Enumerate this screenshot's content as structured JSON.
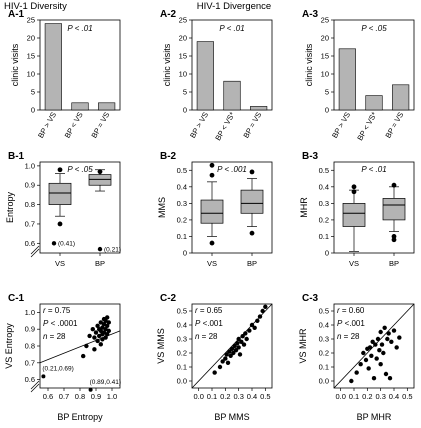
{
  "headers": {
    "left": "HIV-1 Diversity",
    "right": "HIV-1 Divergence"
  },
  "chart_data": [
    {
      "id": "A-1",
      "type": "bar",
      "label": "A-1",
      "ptext": "P < .01",
      "ylabel": "clinic visits",
      "ylim": [
        0,
        25
      ],
      "yticks": [
        0,
        5,
        10,
        15,
        20,
        25
      ],
      "categories": [
        "BP > VS",
        "BP < VS",
        "BP = VS"
      ],
      "values": [
        24,
        2,
        2
      ]
    },
    {
      "id": "A-2",
      "type": "bar",
      "label": "A-2",
      "ptext": "P < .01",
      "ylabel": "clinic visits",
      "ylim": [
        0,
        25
      ],
      "yticks": [
        0,
        5,
        10,
        15,
        20,
        25
      ],
      "categories": [
        "BP > VS",
        "BP < VS*",
        "BP = VS"
      ],
      "values": [
        19,
        8,
        1
      ]
    },
    {
      "id": "A-3",
      "type": "bar",
      "label": "A-3",
      "ptext": "P < .05",
      "ylabel": "clinic visits",
      "ylim": [
        0,
        25
      ],
      "yticks": [
        0,
        5,
        10,
        15,
        20,
        25
      ],
      "categories": [
        "BP > VS",
        "BP < VS*",
        "BP = VS"
      ],
      "values": [
        17,
        4,
        7
      ]
    },
    {
      "id": "B-1",
      "type": "box",
      "label": "B-1",
      "ptext": "P < .05",
      "ylabel": "Entropy",
      "ylim": [
        0.55,
        1.02
      ],
      "yticks": [
        0.6,
        0.7,
        0.8,
        0.9,
        1.0
      ],
      "ytick_labels": [
        "0.6",
        "0.7",
        "0.8",
        "0.9",
        "1.0"
      ],
      "axis_break": true,
      "categories": [
        "VS",
        "BP"
      ],
      "boxes": [
        {
          "whislo": 0.74,
          "q1": 0.8,
          "med": 0.86,
          "q3": 0.91,
          "whishi": 0.96,
          "fliers": [
            0.98,
            0.7
          ]
        },
        {
          "whislo": 0.87,
          "q1": 0.9,
          "med": 0.93,
          "q3": 0.955,
          "whishi": 0.98,
          "fliers": [
            0.97
          ]
        }
      ],
      "annotations": [
        {
          "text": "(0.41)",
          "x": 0.95,
          "y": 0.6,
          "marker": true
        },
        {
          "text": "(0.21)",
          "x": 2.1,
          "y": 0.57,
          "marker": true
        }
      ]
    },
    {
      "id": "B-2",
      "type": "box",
      "label": "B-2",
      "ptext": "P < .001",
      "ylabel": "MMS",
      "ylim": [
        0,
        0.55
      ],
      "yticks": [
        0,
        0.1,
        0.2,
        0.3,
        0.4,
        0.5
      ],
      "ytick_labels": [
        "0",
        "0.1",
        "0.2",
        "0.3",
        "0.4",
        "0.5"
      ],
      "categories": [
        "VS",
        "BP"
      ],
      "boxes": [
        {
          "whislo": 0.1,
          "q1": 0.18,
          "med": 0.24,
          "q3": 0.32,
          "whishi": 0.43,
          "fliers": [
            0.53,
            0.47,
            0.06
          ]
        },
        {
          "whislo": 0.16,
          "q1": 0.24,
          "med": 0.3,
          "q3": 0.38,
          "whishi": 0.45,
          "fliers": [
            0.49,
            0.12
          ]
        }
      ]
    },
    {
      "id": "B-3",
      "type": "box",
      "label": "B-3",
      "ptext": "P < .01",
      "ylabel": "MHR",
      "ylim": [
        0,
        0.55
      ],
      "yticks": [
        0,
        0.1,
        0.2,
        0.3,
        0.4,
        0.5
      ],
      "ytick_labels": [
        "0",
        "0.1",
        "0.2",
        "0.3",
        "0.4",
        "0.5"
      ],
      "categories": [
        "VS",
        "BP"
      ],
      "boxes": [
        {
          "whislo": 0.01,
          "q1": 0.16,
          "med": 0.24,
          "q3": 0.3,
          "whishi": 0.38,
          "fliers": [
            0.4,
            0.37
          ]
        },
        {
          "whislo": 0.13,
          "q1": 0.2,
          "med": 0.29,
          "q3": 0.33,
          "whishi": 0.4,
          "fliers": [
            0.41,
            0.08,
            0.1
          ]
        }
      ]
    },
    {
      "id": "C-1",
      "type": "scatter",
      "label": "C-1",
      "xlabel": "BP Entropy",
      "ylabel": "VS Entropy",
      "xlim": [
        0.55,
        1.05
      ],
      "ylim": [
        0.55,
        1.05
      ],
      "xticks": [
        0.6,
        0.7,
        0.8,
        0.9,
        1.0
      ],
      "xtick_labels": [
        "0.6",
        "0.7",
        "0.8",
        "0.9",
        "1.0"
      ],
      "yticks": [
        0.6,
        0.7,
        0.8,
        0.9,
        1.0
      ],
      "ytick_labels": [
        "0.6",
        "0.7",
        "0.8",
        "0.9",
        "1.0"
      ],
      "axis_break": true,
      "stats": [
        "r = 0.75",
        "P < .0001",
        "n = 28"
      ],
      "fit_line": [
        [
          0.55,
          0.7
        ],
        [
          1.05,
          0.89
        ]
      ],
      "points": [
        [
          0.86,
          0.86
        ],
        [
          0.88,
          0.9
        ],
        [
          0.89,
          0.85
        ],
        [
          0.9,
          0.88
        ],
        [
          0.91,
          0.92
        ],
        [
          0.91,
          0.83
        ],
        [
          0.92,
          0.9
        ],
        [
          0.92,
          0.86
        ],
        [
          0.93,
          0.94
        ],
        [
          0.93,
          0.89
        ],
        [
          0.93,
          0.81
        ],
        [
          0.94,
          0.91
        ],
        [
          0.94,
          0.87
        ],
        [
          0.94,
          0.84
        ],
        [
          0.95,
          0.96
        ],
        [
          0.95,
          0.93
        ],
        [
          0.95,
          0.88
        ],
        [
          0.96,
          0.95
        ],
        [
          0.96,
          0.9
        ],
        [
          0.96,
          0.85
        ],
        [
          0.97,
          0.97
        ],
        [
          0.97,
          0.92
        ],
        [
          0.97,
          0.87
        ],
        [
          0.98,
          0.94
        ],
        [
          0.98,
          0.89
        ],
        [
          0.89,
          0.78
        ],
        [
          0.84,
          0.8
        ],
        [
          0.82,
          0.74
        ]
      ],
      "annotations": [
        {
          "text": "(0.21,0.69)",
          "x": 0.565,
          "y": 0.655,
          "marker": true
        },
        {
          "text": "(0.89,0.41)",
          "x": 0.86,
          "y": 0.575,
          "marker": true
        }
      ]
    },
    {
      "id": "C-2",
      "type": "scatter",
      "label": "C-2",
      "xlabel": "BP MMS",
      "ylabel": "VS MMS",
      "xlim": [
        -0.05,
        0.55
      ],
      "ylim": [
        -0.05,
        0.55
      ],
      "xticks": [
        0,
        0.1,
        0.2,
        0.3,
        0.4,
        0.5
      ],
      "xtick_labels": [
        "0.0",
        "0.1",
        "0.2",
        "0.3",
        "0.4",
        "0.5"
      ],
      "yticks": [
        0,
        0.1,
        0.2,
        0.3,
        0.4,
        0.5
      ],
      "ytick_labels": [
        "0.0",
        "0.1",
        "0.2",
        "0.3",
        "0.4",
        "0.5"
      ],
      "stats": [
        "r = 0.65",
        "P <.001",
        "n = 28"
      ],
      "fit_line": [
        [
          -0.05,
          -0.05
        ],
        [
          0.55,
          0.55
        ]
      ],
      "points": [
        [
          0.12,
          0.06
        ],
        [
          0.16,
          0.1
        ],
        [
          0.18,
          0.14
        ],
        [
          0.2,
          0.16
        ],
        [
          0.21,
          0.19
        ],
        [
          0.22,
          0.13
        ],
        [
          0.23,
          0.21
        ],
        [
          0.24,
          0.18
        ],
        [
          0.25,
          0.23
        ],
        [
          0.26,
          0.2
        ],
        [
          0.27,
          0.25
        ],
        [
          0.28,
          0.22
        ],
        [
          0.29,
          0.27
        ],
        [
          0.3,
          0.24
        ],
        [
          0.3,
          0.3
        ],
        [
          0.31,
          0.19
        ],
        [
          0.32,
          0.28
        ],
        [
          0.33,
          0.32
        ],
        [
          0.34,
          0.26
        ],
        [
          0.35,
          0.34
        ],
        [
          0.36,
          0.3
        ],
        [
          0.38,
          0.36
        ],
        [
          0.4,
          0.4
        ],
        [
          0.42,
          0.38
        ],
        [
          0.44,
          0.43
        ],
        [
          0.46,
          0.46
        ],
        [
          0.48,
          0.5
        ],
        [
          0.5,
          0.53
        ]
      ]
    },
    {
      "id": "C-3",
      "type": "scatter",
      "label": "C-3",
      "xlabel": "BP MHR",
      "ylabel": "VS MHR",
      "xlim": [
        -0.05,
        0.55
      ],
      "ylim": [
        -0.05,
        0.55
      ],
      "xticks": [
        0,
        0.1,
        0.2,
        0.3,
        0.4,
        0.5
      ],
      "xtick_labels": [
        "0.0",
        "0.1",
        "0.2",
        "0.3",
        "0.4",
        "0.5"
      ],
      "yticks": [
        0,
        0.1,
        0.2,
        0.3,
        0.4,
        0.5
      ],
      "ytick_labels": [
        "0.0",
        "0.1",
        "0.2",
        "0.3",
        "0.4",
        "0.5"
      ],
      "stats": [
        "r = 0.60",
        "P <.001",
        "n = 28"
      ],
      "fit_line": [
        [
          -0.05,
          -0.05
        ],
        [
          0.55,
          0.55
        ]
      ],
      "points": [
        [
          0.08,
          0.0
        ],
        [
          0.12,
          0.06
        ],
        [
          0.15,
          0.12
        ],
        [
          0.17,
          0.2
        ],
        [
          0.19,
          0.15
        ],
        [
          0.2,
          0.23
        ],
        [
          0.21,
          0.09
        ],
        [
          0.22,
          0.24
        ],
        [
          0.23,
          0.18
        ],
        [
          0.24,
          0.28
        ],
        [
          0.25,
          0.02
        ],
        [
          0.26,
          0.26
        ],
        [
          0.27,
          0.16
        ],
        [
          0.28,
          0.3
        ],
        [
          0.29,
          0.22
        ],
        [
          0.3,
          0.35
        ],
        [
          0.3,
          0.12
        ],
        [
          0.31,
          0.26
        ],
        [
          0.32,
          0.2
        ],
        [
          0.33,
          0.38
        ],
        [
          0.34,
          0.05
        ],
        [
          0.35,
          0.3
        ],
        [
          0.36,
          0.34
        ],
        [
          0.37,
          0.02
        ],
        [
          0.38,
          0.28
        ],
        [
          0.4,
          0.36
        ],
        [
          0.42,
          0.24
        ],
        [
          0.44,
          0.31
        ]
      ]
    }
  ]
}
